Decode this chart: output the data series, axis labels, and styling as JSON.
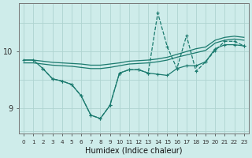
{
  "xlabel": "Humidex (Indice chaleur)",
  "ylabel": "",
  "background_color": "#ceecea",
  "line_color": "#1a7a6e",
  "grid_color": "#aed4d0",
  "xlim": [
    -0.5,
    23.5
  ],
  "ylim": [
    8.55,
    10.85
  ],
  "xtick_labels": [
    "0",
    "1",
    "2",
    "3",
    "4",
    "5",
    "6",
    "7",
    "8",
    "9",
    "10",
    "11",
    "12",
    "13",
    "14",
    "15",
    "16",
    "17",
    "18",
    "19",
    "20",
    "21",
    "22",
    "23"
  ],
  "ytick_vals": [
    9,
    10
  ],
  "line_top_x": [
    0,
    1,
    2,
    3,
    4,
    5,
    6,
    7,
    8,
    9,
    10,
    11,
    12,
    13,
    14,
    15,
    16,
    17,
    18,
    19,
    20,
    21,
    22,
    23
  ],
  "line_top_y": [
    9.85,
    9.85,
    9.83,
    9.81,
    9.8,
    9.79,
    9.78,
    9.76,
    9.76,
    9.78,
    9.8,
    9.83,
    9.84,
    9.85,
    9.87,
    9.9,
    9.95,
    10.0,
    10.05,
    10.08,
    10.2,
    10.25,
    10.27,
    10.25
  ],
  "line_mid_x": [
    0,
    1,
    2,
    3,
    4,
    5,
    6,
    7,
    8,
    9,
    10,
    11,
    12,
    13,
    14,
    15,
    16,
    17,
    18,
    19,
    20,
    21,
    22,
    23
  ],
  "line_mid_y": [
    9.8,
    9.8,
    9.78,
    9.76,
    9.75,
    9.74,
    9.72,
    9.7,
    9.7,
    9.72,
    9.75,
    9.78,
    9.79,
    9.8,
    9.82,
    9.85,
    9.9,
    9.94,
    9.98,
    10.02,
    10.15,
    10.2,
    10.22,
    10.2
  ],
  "line_low_x": [
    0,
    1,
    2,
    3,
    4,
    5,
    6,
    7,
    8,
    9,
    10,
    11,
    12,
    13,
    14,
    15,
    16,
    17,
    18,
    19,
    20,
    21,
    22,
    23
  ],
  "line_low_y": [
    9.85,
    9.85,
    9.7,
    9.52,
    9.48,
    9.42,
    9.22,
    8.88,
    8.82,
    9.05,
    9.62,
    9.68,
    9.68,
    9.62,
    9.6,
    9.58,
    9.7,
    9.75,
    9.75,
    9.82,
    10.05,
    10.12,
    10.12,
    10.1
  ],
  "line_spike_x": [
    2,
    3,
    4,
    5,
    6,
    7,
    8,
    9,
    10,
    11,
    12,
    13,
    14,
    15,
    16,
    17,
    18,
    19,
    20,
    21,
    22,
    23
  ],
  "line_spike_y": [
    9.7,
    9.52,
    9.48,
    9.42,
    9.22,
    8.88,
    8.82,
    9.05,
    9.62,
    9.68,
    9.68,
    9.62,
    10.68,
    10.08,
    9.7,
    10.28,
    9.65,
    9.82,
    10.02,
    10.18,
    10.18,
    10.1
  ]
}
